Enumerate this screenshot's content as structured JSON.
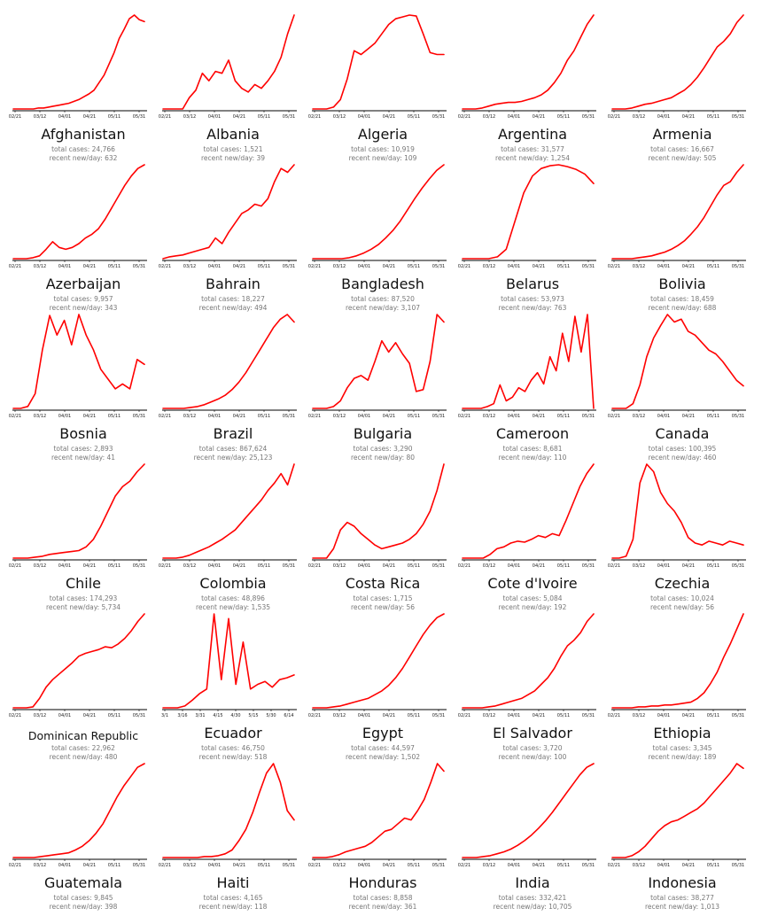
{
  "stat_labels": {
    "total": "total cases:",
    "recent": "recent new/day:"
  },
  "colors": {
    "line": "#ff0000",
    "axis": "#000000",
    "text": "#111111",
    "muted": "#777777"
  },
  "chart_data": [
    {
      "type": "line",
      "title": "Afghanistan",
      "total_cases": "24,766",
      "recent_per_day": "632",
      "x_ticks": [
        "02/21",
        "03/12",
        "04/01",
        "04/21",
        "05/11",
        "05/31"
      ],
      "values": [
        0,
        0,
        0,
        0,
        0,
        1,
        1,
        2,
        3,
        4,
        5,
        6,
        8,
        10,
        13,
        16,
        20,
        28,
        36,
        48,
        60,
        75,
        85,
        96,
        100,
        95,
        93
      ]
    },
    {
      "type": "line",
      "title": "Albania",
      "total_cases": "1,521",
      "recent_per_day": "39",
      "x_ticks": [
        "02/21",
        "03/12",
        "04/01",
        "04/21",
        "05/11",
        "05/31"
      ],
      "values": [
        0,
        0,
        0,
        0,
        12,
        20,
        38,
        30,
        40,
        38,
        52,
        30,
        22,
        18,
        26,
        22,
        30,
        40,
        55,
        80,
        100
      ]
    },
    {
      "type": "line",
      "title": "Algeria",
      "total_cases": "10,919",
      "recent_per_day": "109",
      "x_ticks": [
        "02/21",
        "03/12",
        "04/01",
        "04/21",
        "05/11",
        "05/31"
      ],
      "values": [
        0,
        0,
        0,
        2,
        10,
        32,
        62,
        58,
        64,
        70,
        80,
        90,
        96,
        98,
        100,
        99,
        80,
        60,
        58,
        58
      ]
    },
    {
      "type": "line",
      "title": "Argentina",
      "total_cases": "31,577",
      "recent_per_day": "1,254",
      "x_ticks": [
        "02/21",
        "03/12",
        "04/01",
        "04/21",
        "05/11",
        "05/31"
      ],
      "values": [
        0,
        0,
        0,
        1,
        3,
        5,
        6,
        7,
        7,
        8,
        10,
        12,
        15,
        20,
        28,
        38,
        52,
        62,
        76,
        90,
        100
      ]
    },
    {
      "type": "line",
      "title": "Armenia",
      "total_cases": "16,667",
      "recent_per_day": "505",
      "x_ticks": [
        "02/21",
        "03/12",
        "04/01",
        "04/21",
        "05/11",
        "05/31"
      ],
      "values": [
        0,
        0,
        0,
        1,
        3,
        5,
        6,
        8,
        10,
        12,
        16,
        20,
        26,
        34,
        44,
        55,
        66,
        72,
        80,
        92,
        100
      ]
    },
    {
      "type": "line",
      "title": "Azerbaijan",
      "total_cases": "9,957",
      "recent_per_day": "343",
      "x_ticks": [
        "02/21",
        "03/12",
        "04/01",
        "04/21",
        "05/11",
        "05/31"
      ],
      "values": [
        0,
        0,
        0,
        1,
        3,
        10,
        18,
        12,
        10,
        12,
        16,
        22,
        26,
        32,
        42,
        54,
        66,
        78,
        88,
        96,
        100
      ]
    },
    {
      "type": "line",
      "title": "Bahrain",
      "total_cases": "18,227",
      "recent_per_day": "494",
      "x_ticks": [
        "02/21",
        "03/12",
        "04/01",
        "04/21",
        "05/11",
        "05/31"
      ],
      "values": [
        0,
        2,
        3,
        4,
        6,
        8,
        10,
        12,
        22,
        16,
        28,
        38,
        48,
        52,
        58,
        56,
        64,
        82,
        96,
        92,
        100
      ]
    },
    {
      "type": "line",
      "title": "Bangladesh",
      "total_cases": "87,520",
      "recent_per_day": "3,107",
      "x_ticks": [
        "02/21",
        "03/12",
        "04/01",
        "04/21",
        "05/11",
        "05/31"
      ],
      "values": [
        0,
        0,
        0,
        0,
        0,
        1,
        3,
        6,
        10,
        15,
        22,
        30,
        40,
        52,
        64,
        75,
        85,
        94,
        100
      ]
    },
    {
      "type": "line",
      "title": "Belarus",
      "total_cases": "53,973",
      "recent_per_day": "763",
      "x_ticks": [
        "02/21",
        "03/12",
        "04/01",
        "04/21",
        "05/11",
        "05/31"
      ],
      "values": [
        0,
        0,
        0,
        0,
        2,
        10,
        40,
        70,
        88,
        96,
        99,
        100,
        98,
        95,
        90,
        80
      ]
    },
    {
      "type": "line",
      "title": "Bolivia",
      "total_cases": "18,459",
      "recent_per_day": "688",
      "x_ticks": [
        "02/21",
        "03/12",
        "04/01",
        "04/21",
        "05/11",
        "05/31"
      ],
      "values": [
        0,
        0,
        0,
        0,
        1,
        2,
        3,
        5,
        7,
        10,
        14,
        19,
        26,
        34,
        44,
        56,
        68,
        78,
        82,
        92,
        100
      ]
    },
    {
      "type": "line",
      "title": "Bosnia",
      "total_cases": "2,893",
      "recent_per_day": "41",
      "x_ticks": [
        "02/21",
        "03/12",
        "04/01",
        "04/21",
        "05/11",
        "05/31"
      ],
      "values": [
        0,
        0,
        2,
        15,
        60,
        95,
        75,
        90,
        65,
        96,
        75,
        60,
        40,
        30,
        20,
        25,
        20,
        50,
        45
      ]
    },
    {
      "type": "line",
      "title": "Brazil",
      "total_cases": "867,624",
      "recent_per_day": "25,123",
      "x_ticks": [
        "02/21",
        "03/12",
        "04/01",
        "04/21",
        "05/11",
        "05/31"
      ],
      "values": [
        0,
        0,
        0,
        0,
        1,
        2,
        4,
        7,
        10,
        14,
        20,
        28,
        38,
        50,
        62,
        74,
        86,
        95,
        100,
        92
      ]
    },
    {
      "type": "line",
      "title": "Bulgaria",
      "total_cases": "3,290",
      "recent_per_day": "80",
      "x_ticks": [
        "02/21",
        "03/12",
        "04/01",
        "04/21",
        "05/11",
        "05/31"
      ],
      "values": [
        0,
        0,
        0,
        2,
        8,
        22,
        32,
        35,
        30,
        50,
        72,
        60,
        70,
        58,
        48,
        18,
        20,
        50,
        100,
        92
      ]
    },
    {
      "type": "line",
      "title": "Cameroon",
      "total_cases": "8,681",
      "recent_per_day": "110",
      "x_ticks": [
        "02/21",
        "03/12",
        "04/01",
        "04/21",
        "05/11",
        "05/31"
      ],
      "values": [
        0,
        0,
        0,
        0,
        2,
        5,
        25,
        8,
        12,
        22,
        18,
        30,
        38,
        26,
        55,
        40,
        80,
        50,
        98,
        60,
        100,
        0
      ]
    },
    {
      "type": "line",
      "title": "Canada",
      "total_cases": "100,395",
      "recent_per_day": "460",
      "x_ticks": [
        "02/21",
        "03/12",
        "04/01",
        "04/21",
        "05/11",
        "05/31"
      ],
      "values": [
        0,
        0,
        0,
        5,
        25,
        55,
        75,
        88,
        100,
        92,
        95,
        82,
        78,
        70,
        62,
        58,
        50,
        40,
        30,
        24
      ]
    },
    {
      "type": "line",
      "title": "Chile",
      "total_cases": "174,293",
      "recent_per_day": "5,734",
      "x_ticks": [
        "02/21",
        "03/12",
        "04/01",
        "04/21",
        "05/11",
        "05/31"
      ],
      "values": [
        0,
        0,
        0,
        1,
        2,
        4,
        5,
        6,
        7,
        8,
        12,
        20,
        34,
        50,
        66,
        76,
        82,
        92,
        100
      ]
    },
    {
      "type": "line",
      "title": "Colombia",
      "total_cases": "48,896",
      "recent_per_day": "1,535",
      "x_ticks": [
        "02/21",
        "03/12",
        "04/01",
        "04/21",
        "05/11",
        "05/31"
      ],
      "values": [
        0,
        0,
        0,
        1,
        3,
        6,
        9,
        12,
        16,
        20,
        25,
        30,
        38,
        46,
        54,
        62,
        72,
        80,
        90,
        78,
        100
      ]
    },
    {
      "type": "line",
      "title": "Costa Rica",
      "total_cases": "1,715",
      "recent_per_day": "56",
      "x_ticks": [
        "02/21",
        "03/12",
        "04/01",
        "04/21",
        "05/11",
        "05/31"
      ],
      "values": [
        0,
        0,
        0,
        10,
        30,
        38,
        34,
        26,
        20,
        14,
        10,
        12,
        14,
        16,
        20,
        26,
        36,
        50,
        72,
        100
      ]
    },
    {
      "type": "line",
      "title": "Cote d'Ivoire",
      "total_cases": "5,084",
      "recent_per_day": "192",
      "x_ticks": [
        "02/21",
        "03/12",
        "04/01",
        "04/21",
        "05/11",
        "05/31"
      ],
      "values": [
        0,
        0,
        0,
        0,
        4,
        10,
        12,
        16,
        18,
        17,
        20,
        24,
        22,
        26,
        24,
        40,
        58,
        76,
        90,
        100
      ]
    },
    {
      "type": "line",
      "title": "Czechia",
      "total_cases": "10,024",
      "recent_per_day": "56",
      "x_ticks": [
        "02/21",
        "03/12",
        "04/01",
        "04/21",
        "05/11",
        "05/31"
      ],
      "values": [
        0,
        0,
        2,
        20,
        80,
        100,
        92,
        70,
        58,
        50,
        38,
        22,
        16,
        14,
        18,
        16,
        14,
        18,
        16,
        14
      ]
    },
    {
      "type": "line",
      "title": "Dominican Republic",
      "total_cases": "22,962",
      "recent_per_day": "480",
      "x_ticks": [
        "02/21",
        "03/12",
        "04/01",
        "04/21",
        "05/11",
        "05/31"
      ],
      "values": [
        0,
        0,
        0,
        1,
        10,
        22,
        30,
        36,
        42,
        48,
        55,
        58,
        60,
        62,
        65,
        64,
        68,
        74,
        82,
        92,
        100
      ]
    },
    {
      "type": "line",
      "title": "Ecuador",
      "total_cases": "46,750",
      "recent_per_day": "518",
      "x_ticks": [
        "3/1",
        "3/16",
        "3/31",
        "4/15",
        "4/30",
        "5/15",
        "5/30",
        "6/14"
      ],
      "values": [
        0,
        0,
        0,
        2,
        8,
        15,
        20,
        100,
        30,
        95,
        25,
        70,
        20,
        25,
        28,
        22,
        30,
        32,
        35
      ]
    },
    {
      "type": "line",
      "title": "Egypt",
      "total_cases": "44,597",
      "recent_per_day": "1,502",
      "x_ticks": [
        "02/21",
        "03/12",
        "04/01",
        "04/21",
        "05/11",
        "05/31"
      ],
      "values": [
        0,
        0,
        0,
        1,
        2,
        4,
        6,
        8,
        10,
        14,
        18,
        24,
        32,
        42,
        54,
        66,
        78,
        88,
        96,
        100
      ]
    },
    {
      "type": "line",
      "title": "El Salvador",
      "total_cases": "3,720",
      "recent_per_day": "100",
      "x_ticks": [
        "02/21",
        "03/12",
        "04/01",
        "04/21",
        "05/11",
        "05/31"
      ],
      "values": [
        0,
        0,
        0,
        0,
        1,
        2,
        4,
        6,
        8,
        10,
        14,
        18,
        25,
        32,
        42,
        55,
        66,
        72,
        80,
        92,
        100
      ]
    },
    {
      "type": "line",
      "title": "Ethiopia",
      "total_cases": "3,345",
      "recent_per_day": "189",
      "x_ticks": [
        "02/21",
        "03/12",
        "04/01",
        "04/21",
        "05/11",
        "05/31"
      ],
      "values": [
        0,
        0,
        0,
        0,
        1,
        1,
        2,
        2,
        3,
        3,
        4,
        5,
        6,
        10,
        16,
        26,
        38,
        54,
        68,
        84,
        100
      ]
    },
    {
      "type": "line",
      "title": "Guatemala",
      "total_cases": "9,845",
      "recent_per_day": "398",
      "x_ticks": [
        "02/21",
        "03/12",
        "04/01",
        "04/21",
        "05/11",
        "05/31"
      ],
      "values": [
        0,
        0,
        0,
        0,
        1,
        2,
        3,
        4,
        5,
        8,
        12,
        18,
        26,
        36,
        50,
        64,
        76,
        86,
        96,
        100
      ]
    },
    {
      "type": "line",
      "title": "Haiti",
      "total_cases": "4,165",
      "recent_per_day": "118",
      "x_ticks": [
        "02/21",
        "03/12",
        "04/01",
        "04/21",
        "05/11",
        "05/31"
      ],
      "values": [
        0,
        0,
        0,
        0,
        0,
        0,
        1,
        1,
        2,
        4,
        8,
        18,
        30,
        48,
        70,
        90,
        100,
        80,
        50,
        40
      ]
    },
    {
      "type": "line",
      "title": "Honduras",
      "total_cases": "8,858",
      "recent_per_day": "361",
      "x_ticks": [
        "02/21",
        "03/12",
        "04/01",
        "04/21",
        "05/11",
        "05/31"
      ],
      "values": [
        0,
        0,
        0,
        1,
        3,
        6,
        8,
        10,
        12,
        16,
        22,
        28,
        30,
        36,
        42,
        40,
        50,
        62,
        80,
        100,
        92
      ]
    },
    {
      "type": "line",
      "title": "India",
      "total_cases": "332,421",
      "recent_per_day": "10,705",
      "x_ticks": [
        "02/21",
        "03/12",
        "04/01",
        "04/21",
        "05/11",
        "05/31"
      ],
      "values": [
        0,
        0,
        0,
        1,
        2,
        4,
        6,
        9,
        13,
        18,
        24,
        31,
        39,
        48,
        58,
        68,
        78,
        88,
        96,
        100
      ]
    },
    {
      "type": "line",
      "title": "Indonesia",
      "total_cases": "38,277",
      "recent_per_day": "1,013",
      "x_ticks": [
        "02/21",
        "03/12",
        "04/01",
        "04/21",
        "05/11",
        "05/31"
      ],
      "values": [
        0,
        0,
        0,
        2,
        6,
        12,
        20,
        28,
        34,
        38,
        40,
        44,
        48,
        52,
        58,
        66,
        74,
        82,
        90,
        100,
        95
      ]
    }
  ]
}
